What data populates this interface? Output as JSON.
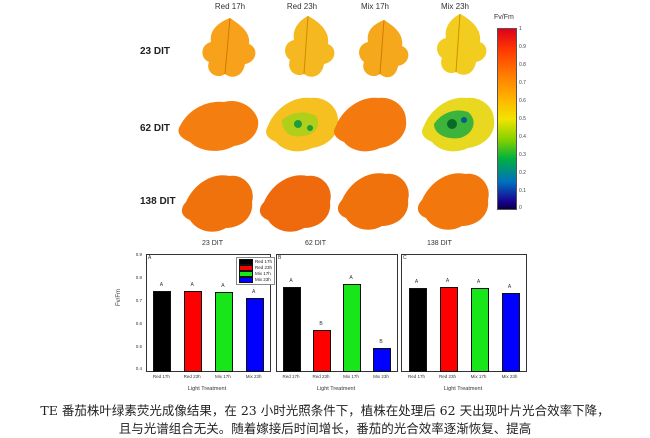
{
  "columns": [
    "Red 17h",
    "Red 23h",
    "Mix 17h",
    "Mix 23h"
  ],
  "rows": [
    "23 DIT",
    "62 DIT",
    "138 DIT"
  ],
  "colorbar": {
    "title": "Fv/Fm",
    "ticks": [
      "1",
      "0.9",
      "0.8",
      "0.7",
      "0.6",
      "0.5",
      "0.4",
      "0.3",
      "0.2",
      "0.1",
      "0"
    ]
  },
  "panel_labels": [
    "23 DIT",
    "62 DIT",
    "138 DIT"
  ],
  "panel_ids": [
    "A",
    "B",
    "C"
  ],
  "chart_data": [
    {
      "type": "bar",
      "categories": [
        "Red 17h",
        "Red 23h",
        "Mix 17h",
        "Mix 23h"
      ],
      "values": [
        0.745,
        0.745,
        0.74,
        0.715
      ],
      "letters": [
        "A",
        "A",
        "A",
        "A"
      ],
      "ylim": [
        0.4,
        0.9
      ],
      "ylabel": "Fv/Fm",
      "xlabel": "Light Treatment"
    },
    {
      "type": "bar",
      "categories": [
        "Red 17h",
        "Red 23h",
        "Mix 17h",
        "Mix 23h"
      ],
      "values": [
        0.76,
        0.575,
        0.775,
        0.495
      ],
      "letters": [
        "A",
        "B",
        "A",
        "B"
      ],
      "ylim": [
        0.4,
        0.9
      ],
      "xlabel": "Light Treatment"
    },
    {
      "type": "bar",
      "categories": [
        "Red 17h",
        "Red 23h",
        "Mix 17h",
        "Mix 23h"
      ],
      "values": [
        0.755,
        0.76,
        0.755,
        0.735
      ],
      "letters": [
        "A",
        "A",
        "A",
        "A"
      ],
      "ylim": [
        0.4,
        0.9
      ],
      "xlabel": "Light Treatment"
    }
  ],
  "y_ticks": [
    "0.9",
    "0.8",
    "0.7",
    "0.6",
    "0.5",
    "0.4"
  ],
  "legend": [
    "Red 17h",
    "Red 23h",
    "Mix 17h",
    "Mix 23h"
  ],
  "colors": {
    "Red 17h": "#000000",
    "Red 23h": "#ff0000",
    "Mix 17h": "#19e619",
    "Mix 23h": "#0000ff"
  },
  "caption": {
    "line1": "TE 番茄株叶绿素荧光成像结果，在 23 小时光照条件下，植株在处理后 62 天出现叶片光合效率下降，",
    "line2": "且与光谱组合无关。随着嫁接后时间增长，番茄的光合效率逐渐恢复、提高"
  }
}
